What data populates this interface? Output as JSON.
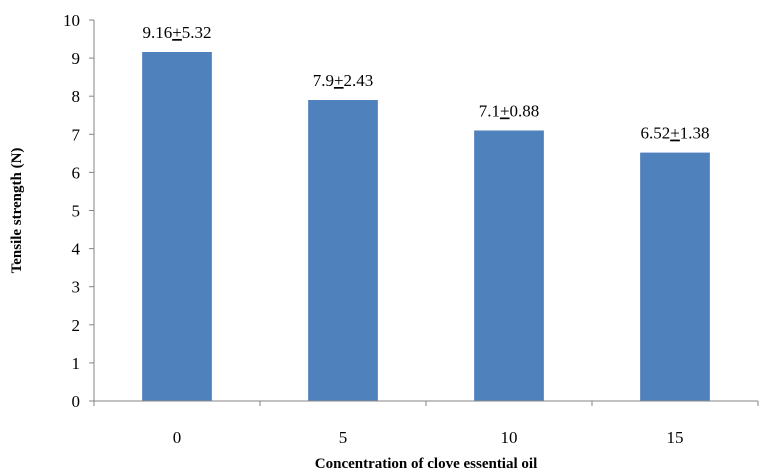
{
  "chart_data": {
    "type": "bar",
    "categories": [
      "0",
      "5",
      "10",
      "15"
    ],
    "values": [
      9.16,
      7.9,
      7.1,
      6.52
    ],
    "errors": [
      5.32,
      2.43,
      0.88,
      1.38
    ],
    "data_labels": [
      {
        "mean": "9.16",
        "pm": "+",
        "err": "5.32"
      },
      {
        "mean": "7.9",
        "pm": "+",
        "err": "2.43"
      },
      {
        "mean": "7.1",
        "pm": "+",
        "err": "0.88"
      },
      {
        "mean": "6.52",
        "pm": "+",
        "err": "1.38"
      }
    ],
    "title": "",
    "xlabel": "Concentration of clove essential oil",
    "ylabel": "Tensile strength (N)",
    "ylim": [
      0,
      10
    ],
    "yticks": [
      "0",
      "1",
      "2",
      "3",
      "4",
      "5",
      "6",
      "7",
      "8",
      "9",
      "10"
    ],
    "grid": false,
    "legend": "none",
    "bar_color": "#4F81BD"
  }
}
